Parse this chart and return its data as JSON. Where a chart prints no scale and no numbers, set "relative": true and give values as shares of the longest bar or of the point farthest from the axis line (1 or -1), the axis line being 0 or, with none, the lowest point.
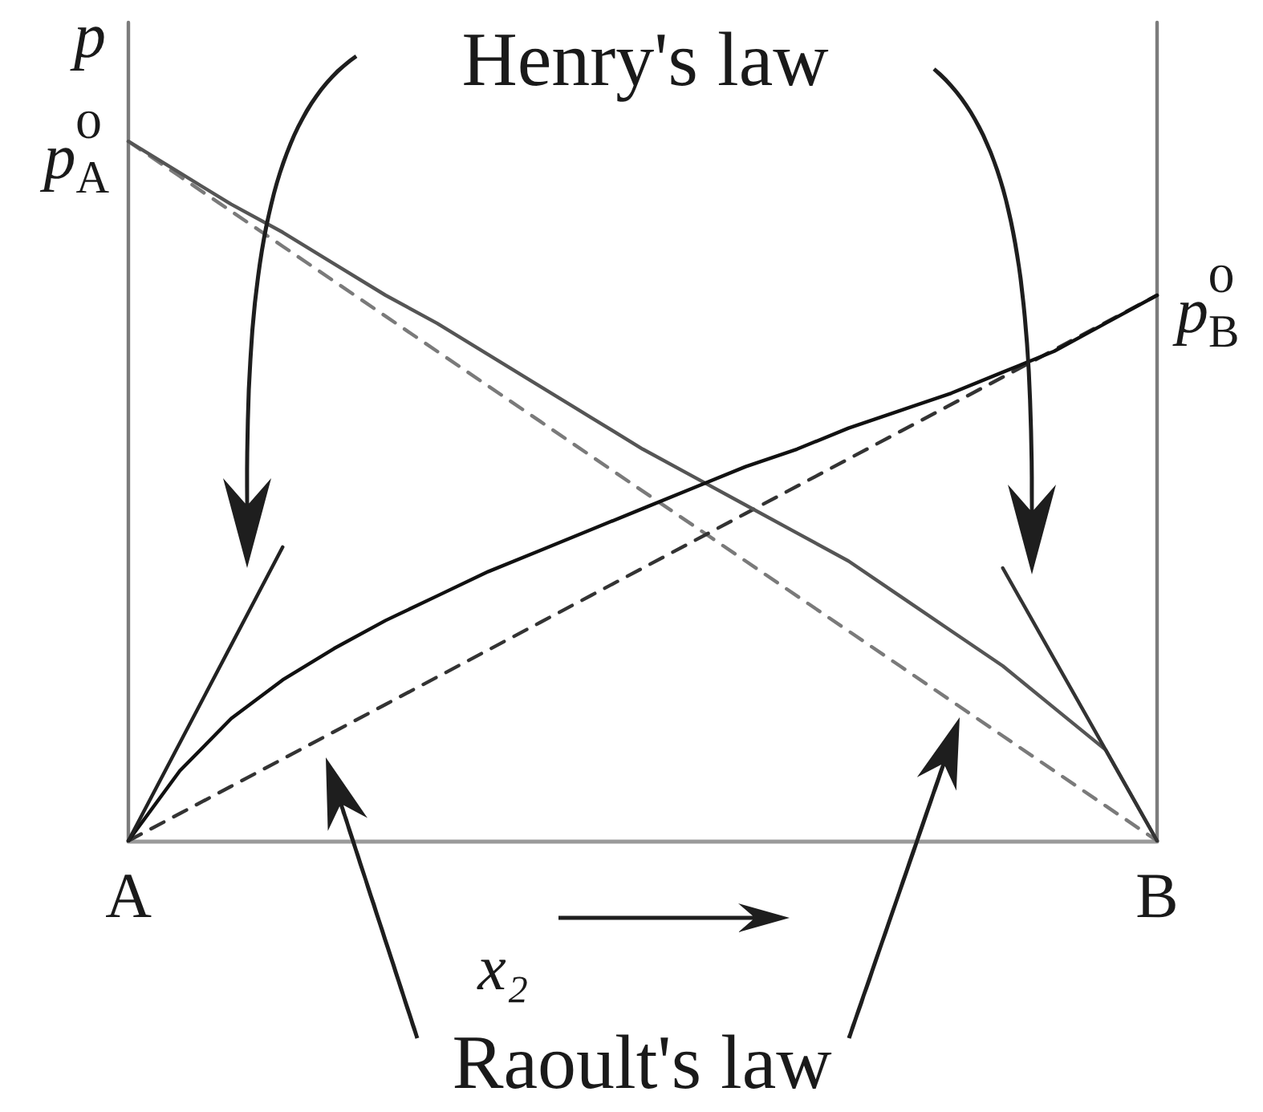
{
  "chart_data": {
    "type": "line",
    "relative": true,
    "xlabel": "x₂",
    "ylabel": "p",
    "marker": "none",
    "categories": [
      "A",
      null,
      null,
      null,
      null,
      null,
      null,
      null,
      null,
      null,
      null,
      null,
      null,
      null,
      null,
      null,
      null,
      null,
      null,
      null,
      "B"
    ],
    "series": [
      {
        "color": "#7a7a7a",
        "line_style": "dashed",
        "values": [
          1,
          0.95,
          0.9,
          0.85,
          0.8,
          0.75,
          0.7,
          0.65,
          0.6,
          0.55,
          0.5,
          0.45,
          0.4,
          0.35,
          0.3,
          0.25,
          0.2,
          0.15,
          0.1,
          0.05,
          0
        ]
      },
      {
        "color": "#333333",
        "line_style": "dashed",
        "values": [
          0,
          0.039,
          0.078,
          0.117,
          0.156,
          0.195,
          0.234,
          0.273,
          0.312,
          0.351,
          0.39,
          0.429,
          0.468,
          0.507,
          0.546,
          0.585,
          0.624,
          0.663,
          0.702,
          0.741,
          0.78
        ]
      },
      {
        "color": "#555555",
        "values": [
          1,
          0.955,
          0.91,
          0.87,
          0.825,
          0.78,
          0.74,
          0.695,
          0.65,
          0.605,
          0.56,
          0.52,
          0.48,
          0.44,
          0.4,
          0.35,
          0.3,
          0.25,
          0.19,
          0.13,
          0
        ]
      },
      {
        "color": "#111111",
        "values": [
          0,
          0.1,
          0.175,
          0.23,
          0.275,
          0.315,
          0.35,
          0.385,
          0.415,
          0.445,
          0.475,
          0.505,
          0.535,
          0.56,
          0.59,
          0.615,
          0.64,
          0.67,
          0.7,
          0.74,
          0.78
        ]
      },
      {
        "color": "#222222",
        "values": [
          0,
          0.14,
          0.28,
          0.42,
          null,
          null,
          null,
          null,
          null,
          null,
          null,
          null,
          null,
          null,
          null,
          null,
          null,
          null,
          null,
          null,
          null
        ]
      },
      {
        "color": "#333333",
        "values": [
          null,
          null,
          null,
          null,
          null,
          null,
          null,
          null,
          null,
          null,
          null,
          null,
          null,
          null,
          null,
          null,
          null,
          0.39,
          0.26,
          0.13,
          0
        ]
      }
    ],
    "annotations": [
      "Henry's law",
      "Raoult's law",
      {
        "text": "p$_{A}$⁰",
        "x": "A",
        "y": 1
      },
      {
        "text": "p$_{B}$⁰",
        "x": "B",
        "y": 0.78
      }
    ]
  }
}
